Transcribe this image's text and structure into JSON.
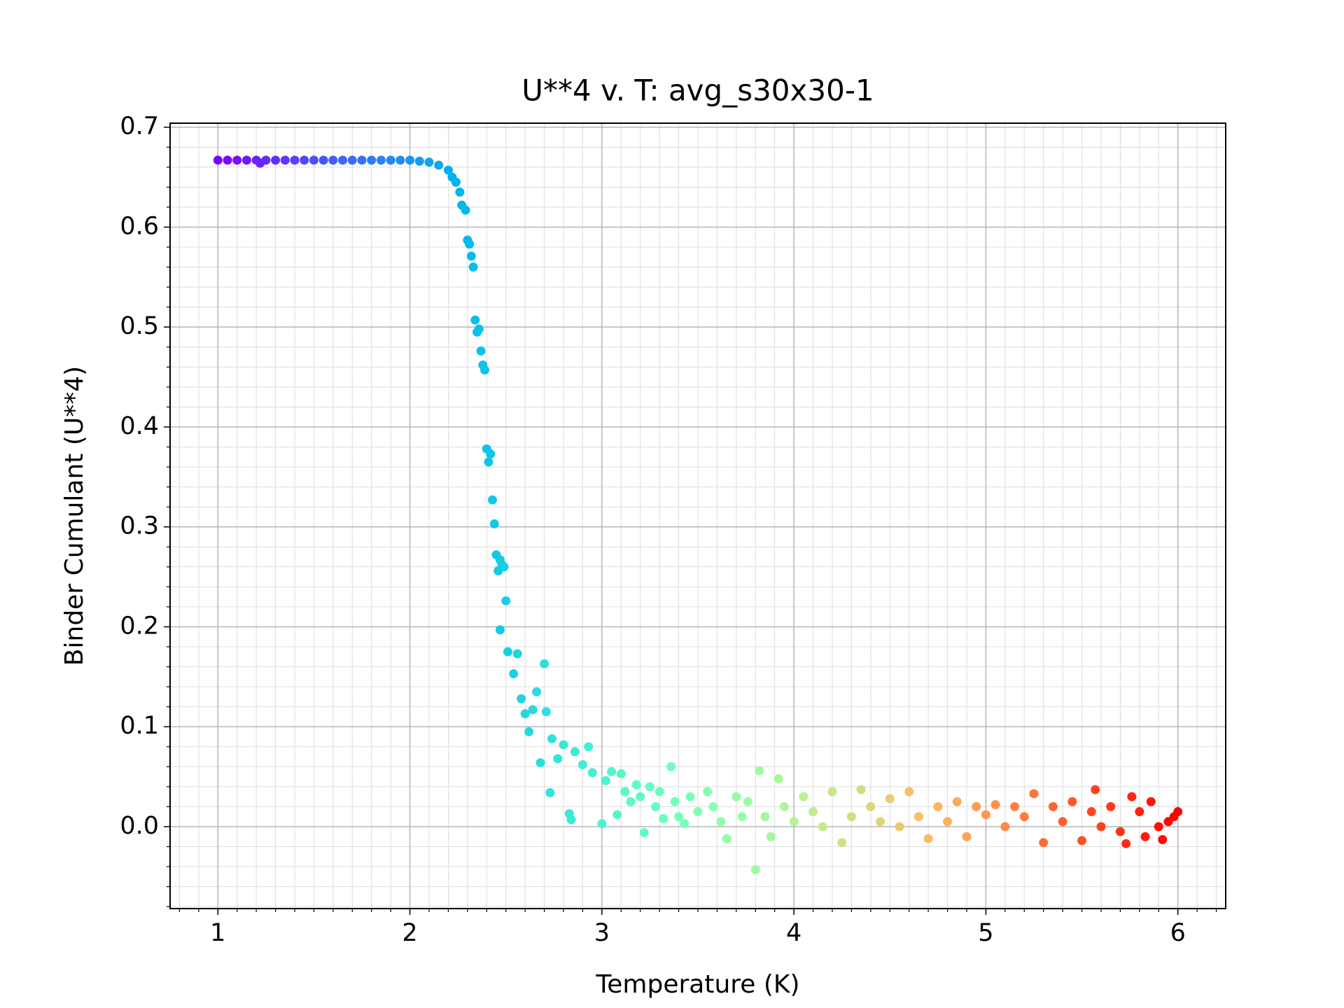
{
  "chart_data": {
    "type": "scatter",
    "title": "U**4 v. T: avg_s30x30-1",
    "x_label": "Temperature (K)",
    "y_label": "Binder Cumulant (U**4)",
    "colormap": "rainbow",
    "grid": true,
    "minor_grid": true,
    "xlim": [
      0.751,
      6.249
    ],
    "ylim": [
      -0.082,
      0.704
    ],
    "xticks": [
      1,
      2,
      3,
      4,
      5,
      6
    ],
    "yticks": [
      {
        "value": 0,
        "label": "0.0"
      },
      0.1,
      0.2,
      0.3,
      0.4,
      0.5,
      0.6,
      0.7
    ],
    "xminorticks": [
      0.8,
      0.9,
      1.1,
      1.2,
      1.3,
      1.4,
      1.5,
      1.6,
      1.7,
      1.8,
      1.9,
      2.1,
      2.2,
      2.3,
      2.4,
      2.5,
      2.6,
      2.7,
      2.8,
      2.9,
      3.1,
      3.2,
      3.3,
      3.4,
      3.5,
      3.6,
      3.7,
      3.8,
      3.9,
      4.1,
      4.2,
      4.3,
      4.4,
      4.5,
      4.6,
      4.7,
      4.8,
      4.9,
      5.1,
      5.2,
      5.3,
      5.4,
      5.5,
      5.6,
      5.7,
      5.8,
      5.9,
      6.1,
      6.2
    ],
    "yminorticks": [
      -0.08,
      -0.06,
      -0.04,
      -0.02,
      0.02,
      0.04,
      0.06,
      0.08,
      0.12,
      0.14,
      0.16,
      0.18,
      0.22,
      0.24,
      0.26,
      0.28,
      0.32,
      0.34,
      0.36,
      0.38,
      0.42,
      0.44,
      0.46,
      0.48,
      0.52,
      0.54,
      0.56,
      0.58,
      0.62,
      0.64,
      0.66,
      0.68
    ],
    "x": [
      1.0,
      1.05,
      1.1,
      1.15,
      1.2,
      1.22,
      1.25,
      1.3,
      1.35,
      1.4,
      1.45,
      1.5,
      1.55,
      1.6,
      1.65,
      1.7,
      1.75,
      1.8,
      1.85,
      1.9,
      1.95,
      2.0,
      2.05,
      2.1,
      2.15,
      2.2,
      2.22,
      2.24,
      2.26,
      2.27,
      2.29,
      2.3,
      2.31,
      2.32,
      2.33,
      2.34,
      2.35,
      2.36,
      2.37,
      2.38,
      2.39,
      2.4,
      2.41,
      2.42,
      2.43,
      2.44,
      2.45,
      2.46,
      2.47,
      2.48,
      2.49,
      2.5,
      2.47,
      2.51,
      2.54,
      2.56,
      2.58,
      2.6,
      2.62,
      2.64,
      2.66,
      2.68,
      2.7,
      2.71,
      2.73,
      2.74,
      2.77,
      2.8,
      2.83,
      2.84,
      2.86,
      2.9,
      2.93,
      2.95,
      3.0,
      3.02,
      3.05,
      3.08,
      3.1,
      3.12,
      3.15,
      3.18,
      3.2,
      3.22,
      3.25,
      3.28,
      3.3,
      3.32,
      3.36,
      3.38,
      3.4,
      3.43,
      3.46,
      3.5,
      3.55,
      3.58,
      3.62,
      3.65,
      3.7,
      3.73,
      3.76,
      3.8,
      3.82,
      3.85,
      3.88,
      3.92,
      3.95,
      4.0,
      4.05,
      4.1,
      4.15,
      4.2,
      4.25,
      4.3,
      4.35,
      4.4,
      4.45,
      4.5,
      4.55,
      4.6,
      4.65,
      4.7,
      4.75,
      4.8,
      4.85,
      4.9,
      4.95,
      5.0,
      5.05,
      5.1,
      5.15,
      5.2,
      5.25,
      5.3,
      5.35,
      5.4,
      5.45,
      5.5,
      5.55,
      5.57,
      5.6,
      5.65,
      5.7,
      5.73,
      5.76,
      5.8,
      5.83,
      5.86,
      5.9,
      5.92,
      5.95,
      5.98,
      6.0
    ],
    "y": [
      0.667,
      0.667,
      0.667,
      0.667,
      0.667,
      0.664,
      0.667,
      0.667,
      0.667,
      0.667,
      0.667,
      0.667,
      0.667,
      0.667,
      0.667,
      0.667,
      0.667,
      0.667,
      0.667,
      0.667,
      0.667,
      0.667,
      0.666,
      0.665,
      0.662,
      0.657,
      0.65,
      0.645,
      0.635,
      0.622,
      0.617,
      0.587,
      0.583,
      0.571,
      0.56,
      0.507,
      0.495,
      0.498,
      0.476,
      0.462,
      0.457,
      0.378,
      0.365,
      0.373,
      0.327,
      0.303,
      0.272,
      0.256,
      0.267,
      0.262,
      0.26,
      0.226,
      0.197,
      0.175,
      0.153,
      0.173,
      0.128,
      0.113,
      0.095,
      0.117,
      0.135,
      0.064,
      0.163,
      0.115,
      0.034,
      0.088,
      0.068,
      0.082,
      0.013,
      0.007,
      0.075,
      0.062,
      0.08,
      0.054,
      0.003,
      0.046,
      0.055,
      0.012,
      0.053,
      0.035,
      0.025,
      0.042,
      0.03,
      -0.006,
      0.04,
      0.02,
      0.035,
      0.008,
      0.06,
      0.025,
      0.01,
      0.003,
      0.03,
      0.015,
      0.035,
      0.02,
      0.005,
      -0.012,
      0.03,
      0.01,
      0.025,
      -0.043,
      0.056,
      0.01,
      -0.01,
      0.048,
      0.02,
      0.005,
      0.03,
      0.015,
      0.0,
      0.035,
      -0.016,
      0.01,
      0.037,
      0.02,
      0.005,
      0.028,
      0.0,
      0.035,
      0.01,
      -0.012,
      0.02,
      0.005,
      0.025,
      -0.01,
      0.02,
      0.012,
      0.022,
      0.0,
      0.02,
      0.01,
      0.033,
      -0.016,
      0.02,
      0.005,
      0.025,
      -0.014,
      0.015,
      0.037,
      0.0,
      0.02,
      -0.005,
      -0.017,
      0.03,
      0.015,
      -0.01,
      0.025,
      0.0,
      -0.013,
      0.005,
      0.01,
      0.015
    ]
  }
}
